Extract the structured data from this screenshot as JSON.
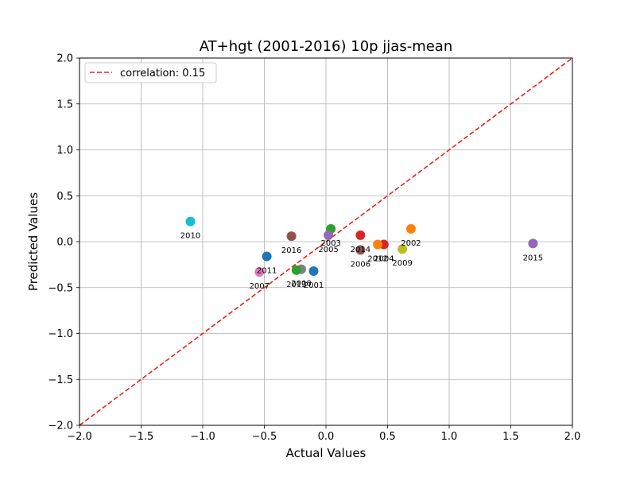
{
  "chart_data": {
    "type": "scatter",
    "title": "AT+hgt (2001-2016) 10p jjas-mean",
    "xlabel": "Actual Values",
    "ylabel": "Predicted Values",
    "xlim": [
      -2.0,
      2.0
    ],
    "ylim": [
      -2.0,
      2.0
    ],
    "xticks": [
      "−2.0",
      "−1.5",
      "−1.0",
      "−0.5",
      "0.0",
      "0.5",
      "1.0",
      "1.5",
      "2.0"
    ],
    "yticks": [
      "−2.0",
      "−1.5",
      "−1.0",
      "−0.5",
      "0.0",
      "0.5",
      "1.0",
      "1.5",
      "2.0"
    ],
    "xtick_values": [
      -2.0,
      -1.5,
      -1.0,
      -0.5,
      0.0,
      0.5,
      1.0,
      1.5,
      2.0
    ],
    "ytick_values": [
      -2.0,
      -1.5,
      -1.0,
      -0.5,
      0.0,
      0.5,
      1.0,
      1.5,
      2.0
    ],
    "grid": true,
    "legend": {
      "placement": "top-left",
      "entries": [
        "correlation: 0.15"
      ]
    },
    "reference_line": {
      "style": "dashed",
      "color": "#e8221c",
      "from": [
        -2.0,
        -2.0
      ],
      "to": [
        2.0,
        2.0
      ]
    },
    "points": [
      {
        "year": "2001",
        "x": -0.1,
        "y": -0.32,
        "color": "#1f77b4"
      },
      {
        "year": "2002",
        "x": 0.69,
        "y": 0.14,
        "color": "#ff7f0e"
      },
      {
        "year": "2003",
        "x": 0.04,
        "y": 0.14,
        "color": "#2ca02c"
      },
      {
        "year": "2004",
        "x": 0.47,
        "y": -0.03,
        "color": "#d62728"
      },
      {
        "year": "2005",
        "x": 0.02,
        "y": 0.07,
        "color": "#9467bd"
      },
      {
        "year": "2006",
        "x": 0.28,
        "y": -0.09,
        "color": "#8c564b"
      },
      {
        "year": "2007",
        "x": -0.54,
        "y": -0.33,
        "color": "#e377c2"
      },
      {
        "year": "2008",
        "x": -0.2,
        "y": -0.3,
        "color": "#7f7f7f"
      },
      {
        "year": "2009",
        "x": 0.62,
        "y": -0.08,
        "color": "#bcbd22"
      },
      {
        "year": "2010",
        "x": -1.1,
        "y": 0.22,
        "color": "#17becf"
      },
      {
        "year": "2011",
        "x": -0.48,
        "y": -0.16,
        "color": "#1f77b4"
      },
      {
        "year": "2012",
        "x": 0.42,
        "y": -0.03,
        "color": "#ff7f0e"
      },
      {
        "year": "2013",
        "x": -0.24,
        "y": -0.31,
        "color": "#2ca02c"
      },
      {
        "year": "2014",
        "x": 0.28,
        "y": 0.07,
        "color": "#d62728"
      },
      {
        "year": "2015",
        "x": 1.68,
        "y": -0.02,
        "color": "#9467bd"
      },
      {
        "year": "2016",
        "x": -0.28,
        "y": 0.06,
        "color": "#8c564b"
      }
    ]
  }
}
